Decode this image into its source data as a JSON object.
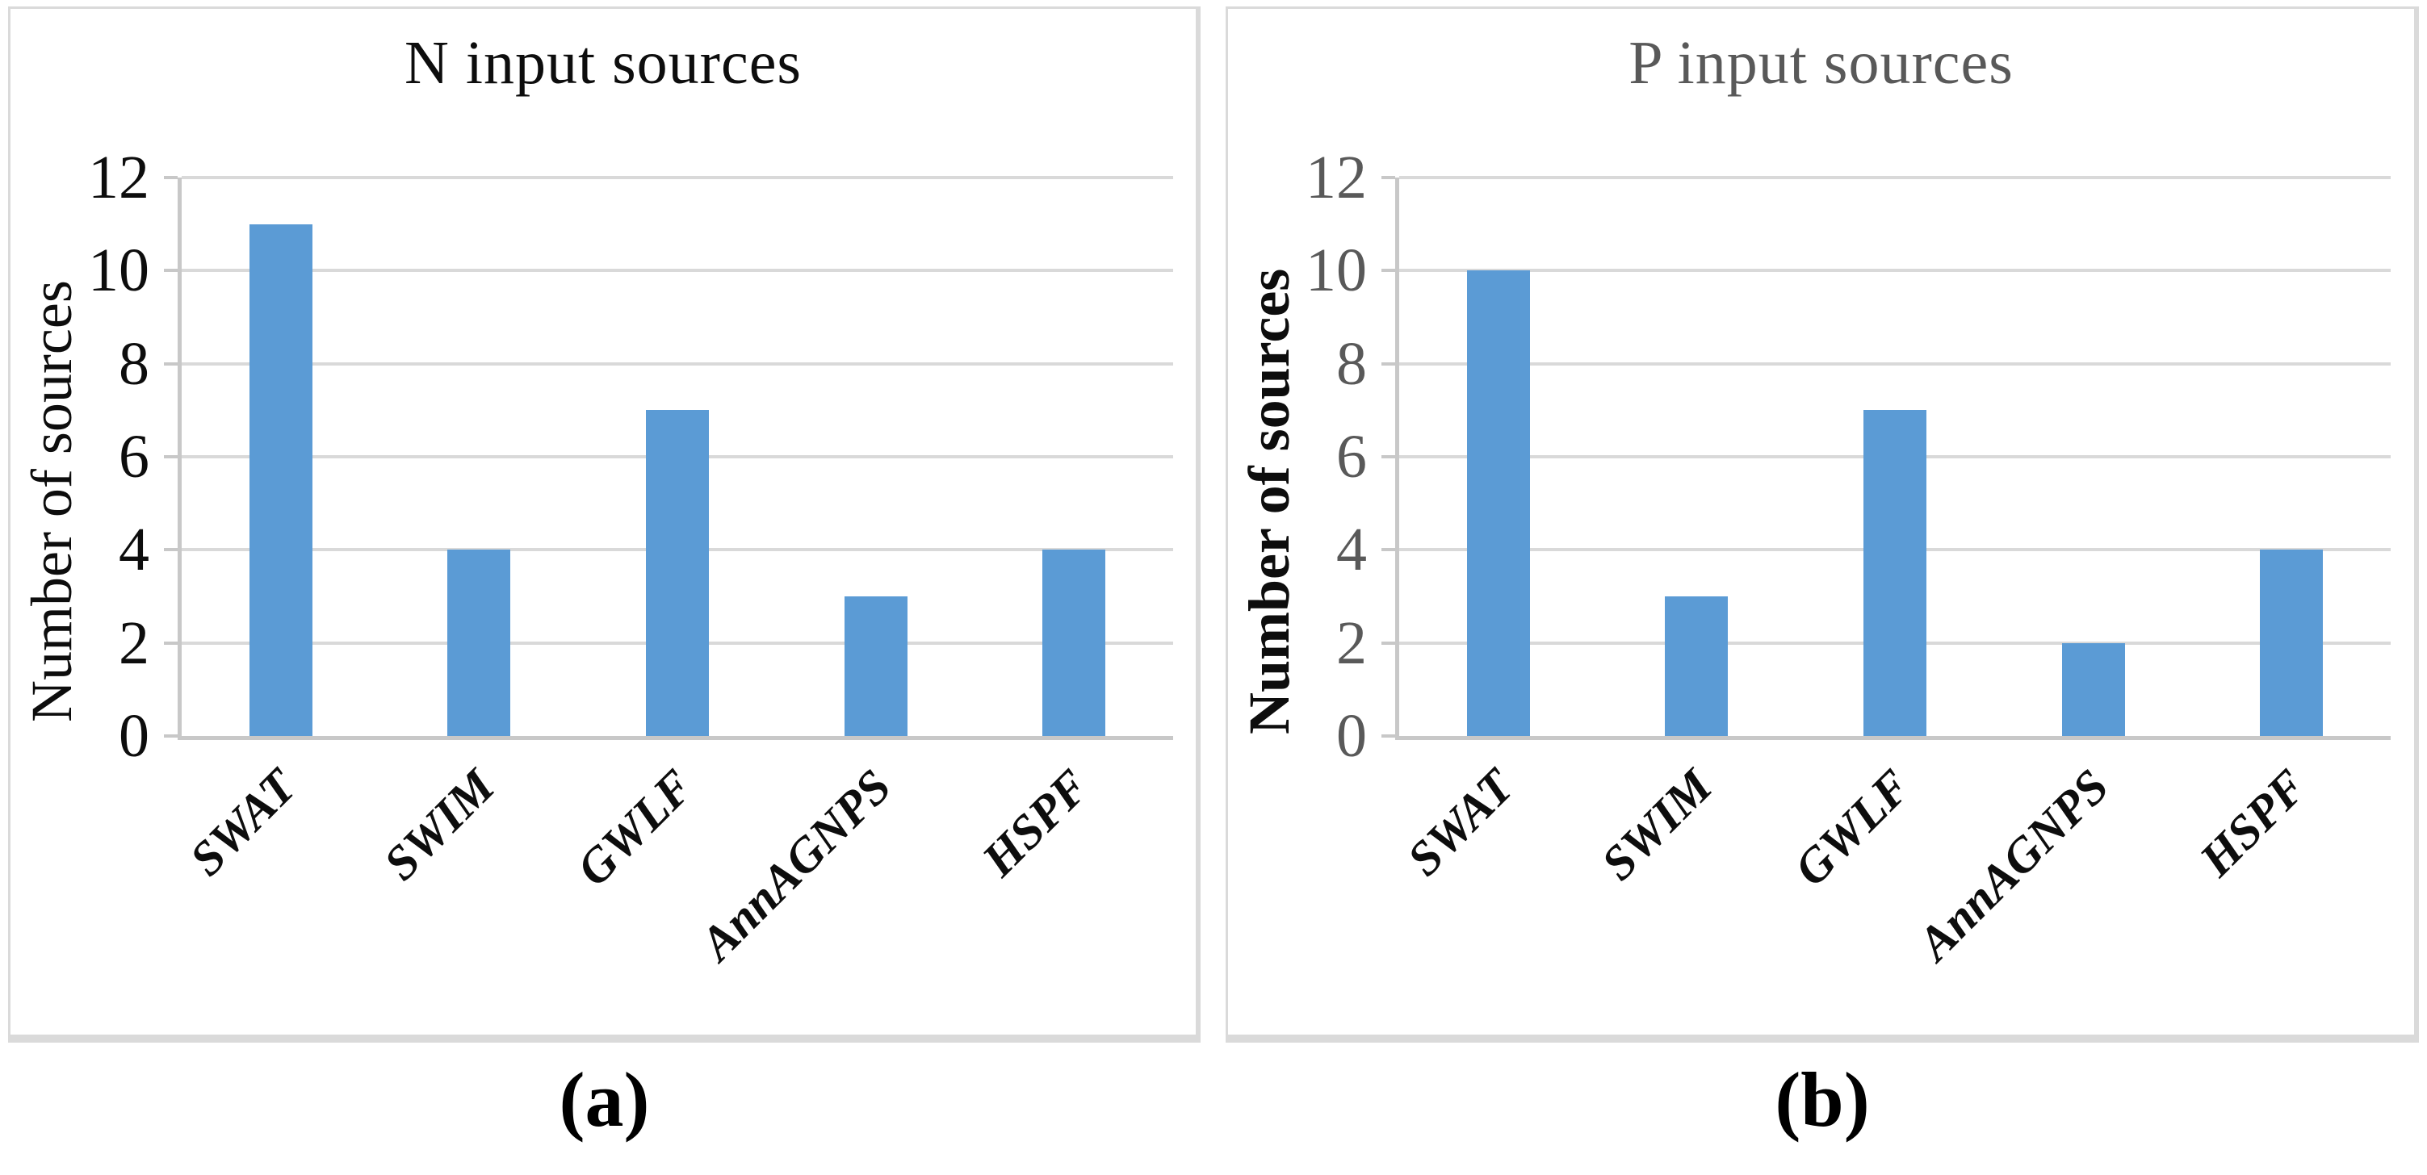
{
  "chart_data": [
    {
      "type": "bar",
      "title": "N input sources",
      "ylabel": "Number of sources",
      "categories": [
        "SWAT",
        "SWIM",
        "GWLF",
        "AnnAGNPS",
        "HSPF"
      ],
      "values": [
        11,
        4,
        7,
        3,
        4
      ],
      "ylim": [
        0,
        12
      ],
      "ytick_step": 2,
      "yticks": [
        0,
        2,
        4,
        6,
        8,
        10,
        12
      ],
      "grid": true,
      "legend": "none",
      "bar_color": "#5B9BD5",
      "grid_color": "#d9d9d9",
      "axis_color": "#c8c8c8",
      "title_color": "#0d0d0d",
      "tick_color": "#0d0d0d",
      "ylabel_color": "#0d0d0d",
      "ylabel_weight": "400",
      "category_color": "#0d0d0d"
    },
    {
      "type": "bar",
      "title": "P input sources",
      "ylabel": "Number of sources",
      "categories": [
        "SWAT",
        "SWIM",
        "GWLF",
        "AnnAGNPS",
        "HSPF"
      ],
      "values": [
        10,
        3,
        7,
        2,
        4
      ],
      "ylim": [
        0,
        12
      ],
      "ytick_step": 2,
      "yticks": [
        0,
        2,
        4,
        6,
        8,
        10,
        12
      ],
      "grid": true,
      "legend": "none",
      "bar_color": "#5B9BD5",
      "grid_color": "#d9d9d9",
      "axis_color": "#c8c8c8",
      "title_color": "#595959",
      "tick_color": "#595959",
      "ylabel_color": "#0d0d0d",
      "ylabel_weight": "700",
      "category_color": "#0d0d0d"
    }
  ],
  "captions": [
    {
      "label": "(a)"
    },
    {
      "label": "(b)"
    }
  ]
}
